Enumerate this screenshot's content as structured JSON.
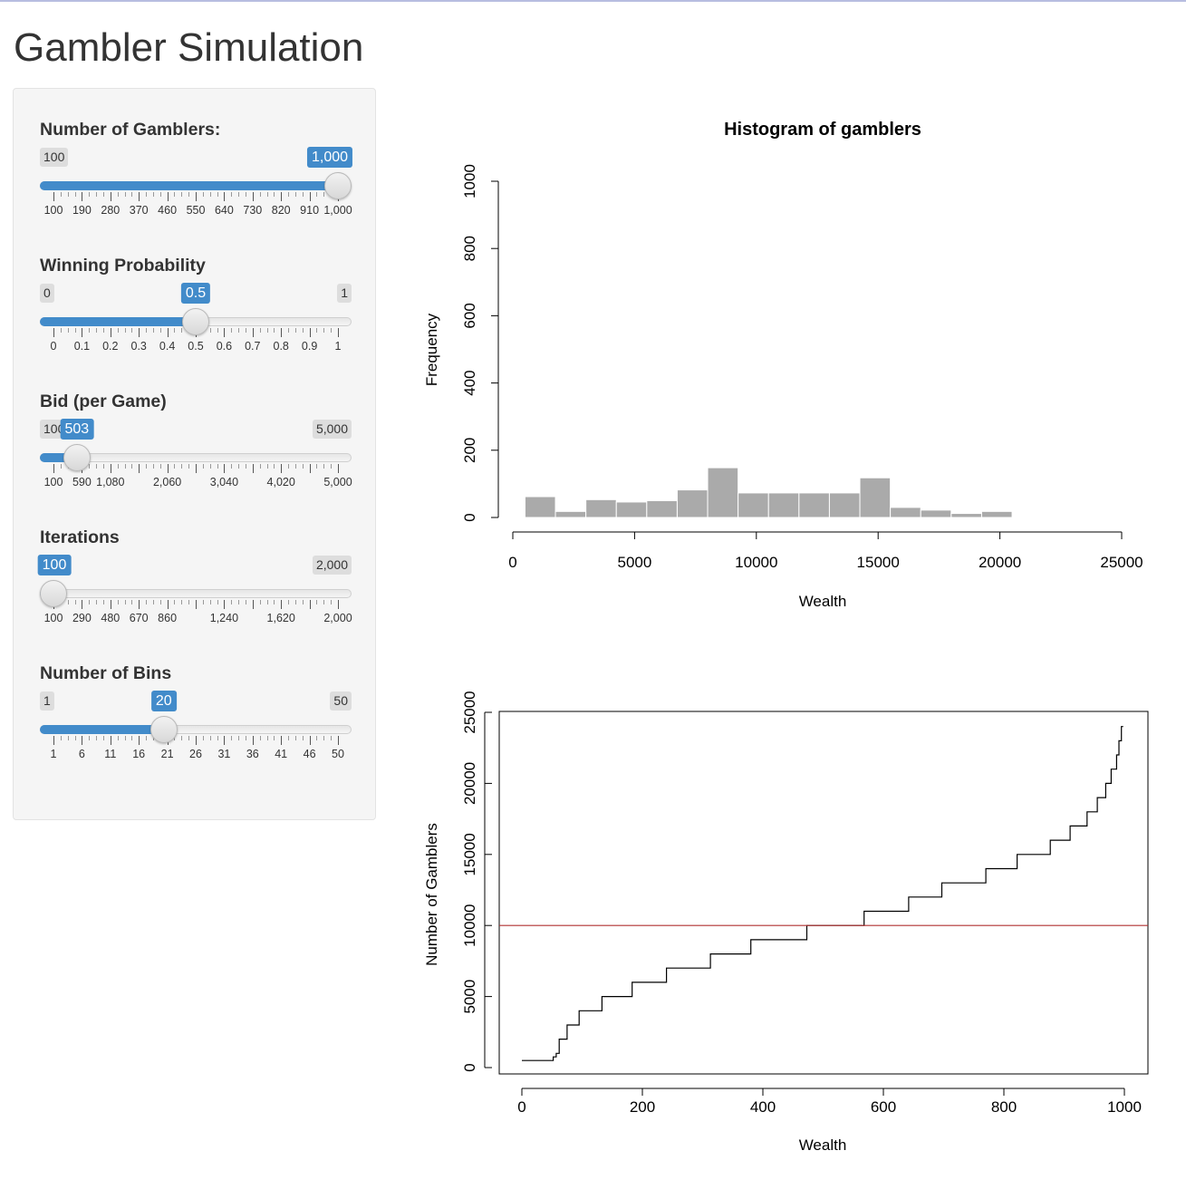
{
  "page": {
    "title": "Gambler Simulation"
  },
  "controls": [
    {
      "id": "gamblers",
      "label": "Number of Gamblers:",
      "min_label": "100",
      "max_label": "1,000",
      "value_label": "1,000",
      "min": 100,
      "max": 1000,
      "value": 1000,
      "tick_labels": [
        "100",
        "190",
        "280",
        "370",
        "460",
        "550",
        "640",
        "730",
        "820",
        "910",
        "1,000"
      ]
    },
    {
      "id": "prob",
      "label": "Winning Probability",
      "min_label": "0",
      "max_label": "1",
      "value_label": "0.5",
      "min": 0,
      "max": 1,
      "value": 0.5,
      "tick_labels": [
        "0",
        "0.1",
        "0.2",
        "0.3",
        "0.4",
        "0.5",
        "0.6",
        "0.7",
        "0.8",
        "0.9",
        "1"
      ]
    },
    {
      "id": "bid",
      "label": "Bid (per Game)",
      "min_label": "100",
      "max_label": "5,000",
      "value_label": "503",
      "min": 100,
      "max": 5000,
      "value": 503,
      "tick_labels": [
        "100",
        "590",
        "1,080",
        "",
        "2,060",
        "",
        "3,040",
        "",
        "4,020",
        "",
        "5,000"
      ]
    },
    {
      "id": "iter",
      "label": "Iterations",
      "min_label": "100",
      "max_label": "2,000",
      "value_label": "100",
      "min": 100,
      "max": 2000,
      "value": 100,
      "tick_labels": [
        "100",
        "290",
        "480",
        "670",
        "860",
        "",
        "1,240",
        "",
        "1,620",
        "",
        "2,000"
      ]
    },
    {
      "id": "bins",
      "label": "Number of Bins",
      "min_label": "1",
      "max_label": "50",
      "value_label": "20",
      "min": 1,
      "max": 50,
      "value": 20,
      "tick_labels": [
        "1",
        "6",
        "11",
        "16",
        "21",
        "26",
        "31",
        "36",
        "41",
        "46",
        "50"
      ]
    }
  ],
  "colors": {
    "accent": "#428bca",
    "bar_fill": "#aaaaaa",
    "ref_line": "#b03030"
  },
  "chart_data": [
    {
      "type": "bar",
      "title": "Histogram of gamblers",
      "xlabel": "Wealth",
      "ylabel": "Frequency",
      "xlim": [
        0,
        25000
      ],
      "ylim": [
        0,
        1000
      ],
      "x_ticks": [
        "0",
        "5000",
        "10000",
        "15000",
        "20000",
        "25000"
      ],
      "y_ticks": [
        "0",
        "200",
        "400",
        "600",
        "800",
        "1000"
      ],
      "bins": [
        {
          "start": 500,
          "end": 1750,
          "count": 62
        },
        {
          "start": 1750,
          "end": 3000,
          "count": 18
        },
        {
          "start": 3000,
          "end": 4250,
          "count": 53
        },
        {
          "start": 4250,
          "end": 5500,
          "count": 46
        },
        {
          "start": 5500,
          "end": 6750,
          "count": 50
        },
        {
          "start": 6750,
          "end": 8000,
          "count": 82
        },
        {
          "start": 8000,
          "end": 9250,
          "count": 148
        },
        {
          "start": 9250,
          "end": 10500,
          "count": 73
        },
        {
          "start": 10500,
          "end": 11750,
          "count": 73
        },
        {
          "start": 11750,
          "end": 13000,
          "count": 73
        },
        {
          "start": 13000,
          "end": 14250,
          "count": 73
        },
        {
          "start": 14250,
          "end": 15500,
          "count": 118
        },
        {
          "start": 15500,
          "end": 16750,
          "count": 30
        },
        {
          "start": 16750,
          "end": 18000,
          "count": 22
        },
        {
          "start": 18000,
          "end": 19250,
          "count": 12
        },
        {
          "start": 19250,
          "end": 20500,
          "count": 18
        },
        {
          "start": 20500,
          "end": 21750,
          "count": 0
        },
        {
          "start": 21750,
          "end": 23000,
          "count": 2
        }
      ]
    },
    {
      "type": "line",
      "title": "",
      "xlabel": "Wealth",
      "ylabel": "Number of Gamblers",
      "xlim": [
        0,
        1000
      ],
      "ylim": [
        0,
        25000
      ],
      "x_ticks": [
        "0",
        "200",
        "400",
        "600",
        "800",
        "1000"
      ],
      "y_ticks": [
        "0",
        "5000",
        "10000",
        "15000",
        "20000",
        "25000"
      ],
      "reference_y": 10000,
      "step_points": [
        [
          0,
          500
        ],
        [
          52,
          500
        ],
        [
          52,
          750
        ],
        [
          57,
          750
        ],
        [
          57,
          1000
        ],
        [
          62,
          1000
        ],
        [
          62,
          2000
        ],
        [
          75,
          2000
        ],
        [
          75,
          3000
        ],
        [
          95,
          3000
        ],
        [
          95,
          4000
        ],
        [
          133,
          4000
        ],
        [
          133,
          5000
        ],
        [
          183,
          5000
        ],
        [
          183,
          6000
        ],
        [
          240,
          6000
        ],
        [
          240,
          7000
        ],
        [
          313,
          7000
        ],
        [
          313,
          8000
        ],
        [
          380,
          8000
        ],
        [
          380,
          9000
        ],
        [
          473,
          9000
        ],
        [
          473,
          10000
        ],
        [
          568,
          10000
        ],
        [
          568,
          11000
        ],
        [
          642,
          11000
        ],
        [
          642,
          12000
        ],
        [
          697,
          12000
        ],
        [
          697,
          13000
        ],
        [
          770,
          13000
        ],
        [
          770,
          14000
        ],
        [
          822,
          14000
        ],
        [
          822,
          15000
        ],
        [
          877,
          15000
        ],
        [
          877,
          16000
        ],
        [
          910,
          16000
        ],
        [
          910,
          17000
        ],
        [
          938,
          17000
        ],
        [
          938,
          18000
        ],
        [
          955,
          18000
        ],
        [
          955,
          19000
        ],
        [
          969,
          19000
        ],
        [
          969,
          20000
        ],
        [
          978,
          20000
        ],
        [
          978,
          21000
        ],
        [
          987,
          21000
        ],
        [
          987,
          22000
        ],
        [
          991,
          22000
        ],
        [
          991,
          23000
        ],
        [
          995,
          23000
        ],
        [
          995,
          24000
        ],
        [
          998,
          24000
        ]
      ]
    }
  ]
}
